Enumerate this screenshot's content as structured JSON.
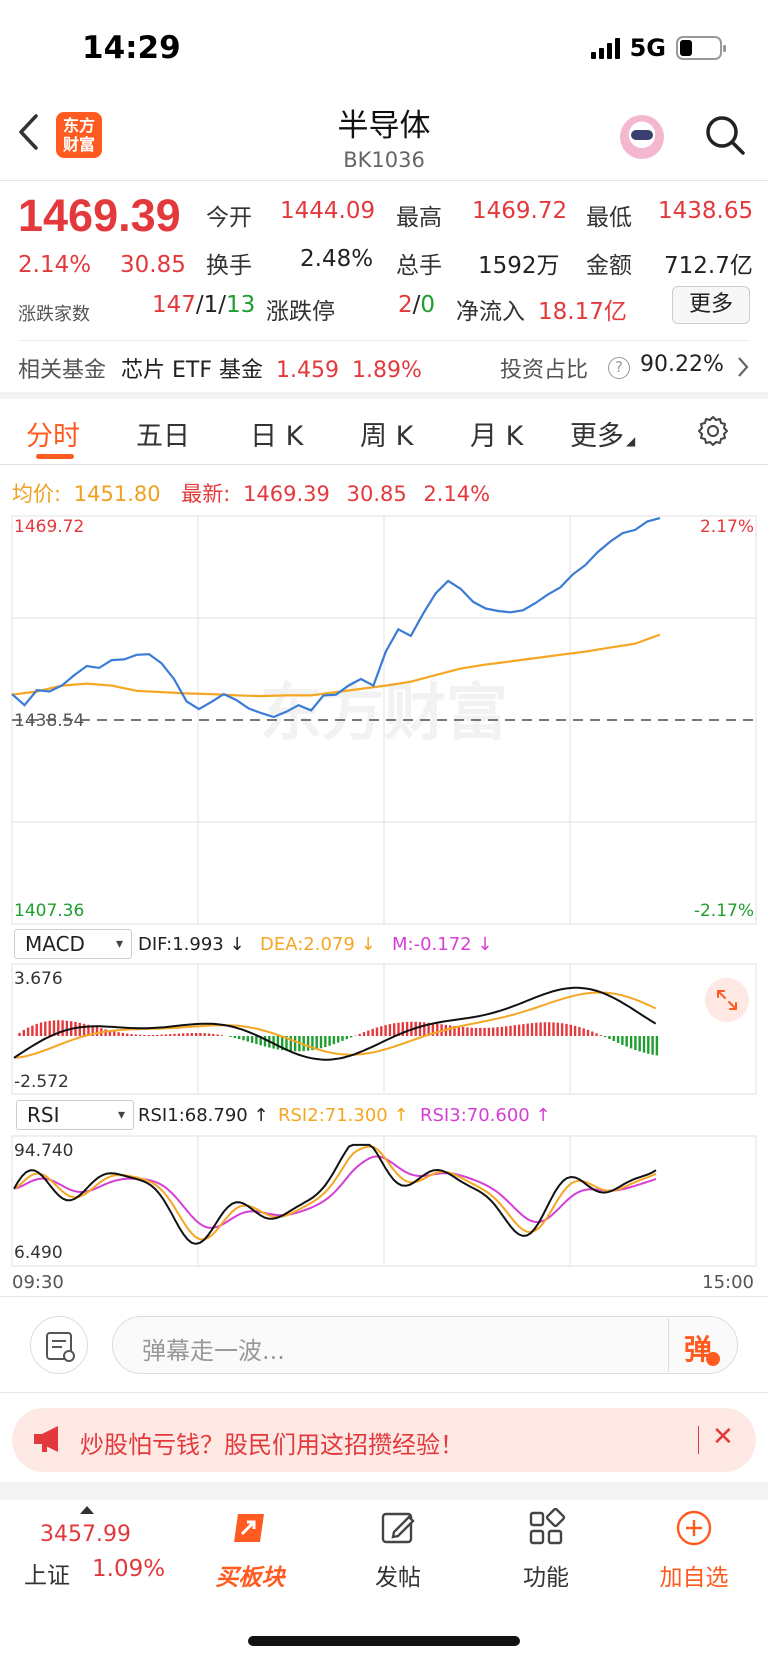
{
  "status_bar": {
    "time": "14:29",
    "network": "5G"
  },
  "header": {
    "title": "半导体",
    "code": "BK1036",
    "logo_line1": "东方",
    "logo_line2": "财富"
  },
  "quote": {
    "price": "1469.39",
    "change_pct": "2.14%",
    "change": "30.85",
    "open_label": "今开",
    "open": "1444.09",
    "high_label": "最高",
    "high": "1469.72",
    "low_label": "最低",
    "low": "1438.65",
    "turnover_label": "换手",
    "turnover": "2.48%",
    "volume_label": "总手",
    "volume": "1592万",
    "amount_label": "金额",
    "amount": "712.7亿",
    "breadth_label": "涨跌家数",
    "breadth_up": "147",
    "breadth_flat": "1",
    "breadth_down": "13",
    "limit_label": "涨跌停",
    "limit_up": "2",
    "limit_down": "0",
    "inflow_label": "净流入",
    "inflow": "18.17亿",
    "more_label": "更多"
  },
  "fund": {
    "label": "相关基金",
    "name": "芯片 ETF 基金",
    "price": "1.459",
    "pct": "1.89%",
    "ratio_label": "投资占比",
    "help": "?",
    "ratio": "90.22%"
  },
  "tabs": [
    {
      "label": "分时"
    },
    {
      "label": "五日"
    },
    {
      "label": "日 K"
    },
    {
      "label": "周 K"
    },
    {
      "label": "月 K"
    },
    {
      "label": "更多"
    }
  ],
  "chart_info": {
    "avg_label": "均价:",
    "avg": "1451.80",
    "latest_label": "最新:",
    "latest": "1469.39",
    "change": "30.85",
    "pct": "2.14%"
  },
  "chart_data": [
    {
      "type": "line",
      "x_start": "09:30",
      "x_end": "15:00",
      "ylim": [
        1407.36,
        1469.72
      ],
      "y_top_label": "1469.72",
      "y_mid_label": "1438.54",
      "y_bottom_label": "1407.36",
      "pct_top_label": "2.17%",
      "pct_bottom_label": "-2.17%",
      "watermark": "东方财富",
      "colors": {
        "price": "#3a7bd5",
        "avg": "#f5a623"
      },
      "series": [
        {
          "values": [
            1442.5,
            1440.8,
            1443.1,
            1442.9,
            1443.8,
            1445.4,
            1446.8,
            1446.5,
            1447.7,
            1447.8,
            1448.5,
            1448.6,
            1447.2,
            1444.8,
            1441.4,
            1440.2,
            1441.3,
            1442.5,
            1441.6,
            1440.3,
            1439.6,
            1439.0,
            1439.8,
            1440.8,
            1440.0,
            1442.3,
            1442.4,
            1443.8,
            1444.8,
            1443.8,
            1449.0,
            1452.4,
            1451.4,
            1454.8,
            1457.9,
            1459.8,
            1458.6,
            1456.6,
            1455.6,
            1455.2,
            1455.0,
            1455.3,
            1456.4,
            1457.7,
            1458.8,
            1460.8,
            1462.2,
            1464.2,
            1465.8,
            1467.1,
            1467.6,
            1468.9,
            1469.4
          ]
        },
        {
          "values": [
            1442.4,
            1442.9,
            1443.8,
            1444.1,
            1443.8,
            1443.0,
            1442.8,
            1442.6,
            1442.5,
            1442.3,
            1442.2,
            1442.3,
            1442.3,
            1442.8,
            1443.3,
            1443.8,
            1444.4,
            1445.4,
            1446.4,
            1447.0,
            1447.5,
            1448.0,
            1448.5,
            1449.0,
            1449.6,
            1450.2,
            1451.6
          ]
        }
      ]
    },
    {
      "type": "line",
      "indicator": "MACD",
      "dif_label": "DIF:1.993 ↓",
      "dea_label": "DEA:2.079 ↓",
      "m_label": "M:-0.172 ↓",
      "y_top_label": "3.676",
      "y_bottom_label": "-2.572",
      "ylim": [
        -2.572,
        3.676
      ],
      "colors": {
        "dif": "#111111",
        "dea": "#f5a623",
        "up": "#e4393c",
        "down": "#1e9e2e"
      }
    },
    {
      "type": "line",
      "indicator": "RSI",
      "rsi1_label": "RSI1:68.790 ↑",
      "rsi2_label": "RSI2:71.300 ↑",
      "rsi3_label": "RSI3:70.600 ↑",
      "y_top_label": "94.740",
      "y_bottom_label": "6.490",
      "ylim": [
        6.49,
        94.74
      ],
      "colors": {
        "rsi1": "#111111",
        "rsi2": "#f5a623",
        "rsi3": "#d63fd6"
      }
    }
  ],
  "danmu": {
    "placeholder": "弹幕走一波...",
    "button": "弹"
  },
  "banner": {
    "text": "炒股怕亏钱？股民们用这招攒经验！",
    "close": "✕"
  },
  "bottom_nav": {
    "index_value": "3457.99",
    "index_name": "上证",
    "index_pct": "1.09%",
    "items": [
      {
        "label": "买板块"
      },
      {
        "label": "发帖"
      },
      {
        "label": "功能"
      },
      {
        "label": "加自选"
      }
    ]
  }
}
